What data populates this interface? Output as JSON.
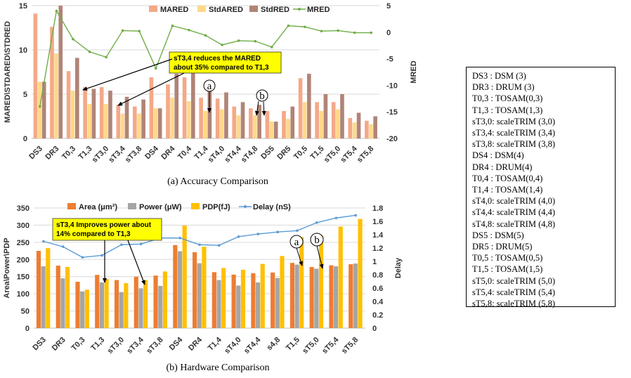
{
  "figure": {
    "caption_a": "(a) Accuracy Comparison",
    "caption_b": "(b) Hardware Comparison"
  },
  "annotations": {
    "a_note": [
      "sT3,4 reduces the MARED",
      "about 35% compared to T1,3"
    ],
    "b_note": [
      "sT3,4 Improves power about",
      "14% compared to T1,3"
    ],
    "mark_a": "a",
    "mark_b": "b"
  },
  "design_list": [
    "DS3 : DSM (3)",
    "DR3 : DRUM (3)",
    "T0,3 : TOSAM(0,3)",
    "T1,3 : TOSAM(1,3)",
    "sT3,0: scaleTRIM (3,0)",
    "sT3,4: scaleTRIM (3,4)",
    "sT3,8: scaleTRIM (3,8)",
    "DS4 : DSM(4)",
    "DR4 : DRUM(4)",
    "T0,4 : TOSAM(0,4)",
    "T1,4 : TOSAM(1,4)",
    "sT4,0: scaleTRIM (4,0)",
    "sT4,4: scaleTRIM (4,4)",
    "sT4,8: scaleTRIM (4,8)",
    "DS5 : DSM(5)",
    "DR5 : DRUM(5)",
    "T0,5 : TOSAM(0,5)",
    "T1,5 : TOSAM(1,5)",
    "sT5,0: scaleTRIM (5,0)",
    "sT5,4: scaleTRIM (5,4)",
    "sT5,8: scaleTRIM (5,8)"
  ],
  "chart_data": [
    {
      "type": "bar",
      "title": "",
      "ylabel": "MARED\\STDARED\\STDRED",
      "y2label": "MRED",
      "ylim": [
        0,
        15
      ],
      "yticks": [
        0,
        5,
        10,
        15
      ],
      "y2lim": [
        -20,
        5
      ],
      "y2ticks": [
        -20,
        -15,
        -10,
        -5,
        0,
        5
      ],
      "grid": true,
      "legend_position": "top",
      "categories": [
        "DS3",
        "DR3",
        "T0,3",
        "T1,3",
        "sT3,0",
        "sT3,4",
        "sT3,8",
        "DS4",
        "DR4",
        "T0,4",
        "T1,4",
        "sT4,0",
        "sT4,4",
        "sT4,8",
        "DS5",
        "DR5",
        "T0,5",
        "T1,5",
        "sT5,0",
        "sT5,4",
        "sT5,8"
      ],
      "series": [
        {
          "name": "MARED",
          "kind": "bar",
          "color": "#F4A988",
          "values": [
            14.1,
            12.6,
            7.6,
            5.8,
            5.8,
            3.8,
            3.6,
            6.9,
            6.1,
            6.9,
            4.6,
            4.5,
            3.6,
            3.4,
            3.1,
            3.1,
            6.8,
            4.1,
            4.1,
            2.3,
            2.0
          ]
        },
        {
          "name": "StdARED",
          "kind": "bar",
          "color": "#FFD98A",
          "values": [
            6.4,
            9.6,
            5.4,
            3.9,
            3.9,
            2.8,
            2.8,
            3.4,
            4.6,
            4.2,
            3.1,
            3.3,
            2.6,
            2.6,
            1.9,
            2.2,
            4.1,
            3.1,
            3.3,
            1.8,
            1.6
          ]
        },
        {
          "name": "StdRED",
          "kind": "bar",
          "color": "#B08478",
          "values": [
            6.4,
            15.0,
            9.1,
            5.6,
            5.4,
            4.7,
            4.4,
            3.4,
            7.3,
            7.4,
            5.6,
            5.2,
            4.1,
            3.8,
            1.9,
            3.6,
            7.3,
            5.0,
            5.0,
            2.9,
            2.5
          ]
        },
        {
          "name": "MRED",
          "kind": "line",
          "axis": "right",
          "color": "#70AD47",
          "values": [
            -14,
            4,
            -1.3,
            -3.7,
            -4.7,
            0.3,
            0.2,
            -6.8,
            1.2,
            0.4,
            -0.6,
            -2.4,
            -1.6,
            -1.7,
            -2.8,
            1.2,
            1.0,
            0.2,
            0.3,
            -0.1,
            -0.1
          ]
        }
      ]
    },
    {
      "type": "bar",
      "title": "",
      "ylabel": "Area\\Power\\PDP",
      "y2label": "Delay",
      "ylim": [
        0,
        350
      ],
      "yticks": [
        0,
        50,
        100,
        150,
        200,
        250,
        300,
        350
      ],
      "y2lim": [
        0,
        1.8
      ],
      "y2ticks": [
        0,
        0.2,
        0.4,
        0.6,
        0.8,
        1.0,
        1.2,
        1.4,
        1.6,
        1.8
      ],
      "grid": true,
      "legend_position": "top",
      "categories": [
        "DS3",
        "DR3",
        "T0,3",
        "T1,3",
        "sT3,0",
        "sT3,4",
        "sT3,8",
        "DS4",
        "DR4",
        "T1,4",
        "sT4,0",
        "sT4,4",
        "s4,8",
        "T1,5",
        "sT5,0",
        "sT5,4",
        "sT5,8"
      ],
      "series": [
        {
          "name": "Area (μm²)",
          "kind": "bar",
          "color": "#ED7D31",
          "values": [
            225,
            182,
            135,
            155,
            140,
            150,
            153,
            242,
            221,
            163,
            156,
            160,
            162,
            190,
            178,
            183,
            186
          ]
        },
        {
          "name": "Power (μW)",
          "kind": "bar",
          "color": "#A5A5A5",
          "values": [
            180,
            145,
            107,
            133,
            105,
            116,
            123,
            224,
            189,
            140,
            124,
            133,
            146,
            185,
            173,
            180,
            188
          ]
        },
        {
          "name": "PDP(fJ)",
          "kind": "bar",
          "color": "#FFC000",
          "values": [
            233,
            178,
            112,
            143,
            131,
            140,
            165,
            299,
            237,
            175,
            170,
            187,
            210,
            265,
            270,
            296,
            318
          ]
        },
        {
          "name": "Delay (nS)",
          "kind": "line",
          "axis": "right",
          "color": "#5B9BD5",
          "values": [
            1.3,
            1.22,
            1.06,
            1.09,
            1.25,
            1.26,
            1.35,
            1.35,
            1.25,
            1.24,
            1.37,
            1.41,
            1.44,
            1.46,
            1.58,
            1.65,
            1.69
          ]
        }
      ]
    }
  ]
}
